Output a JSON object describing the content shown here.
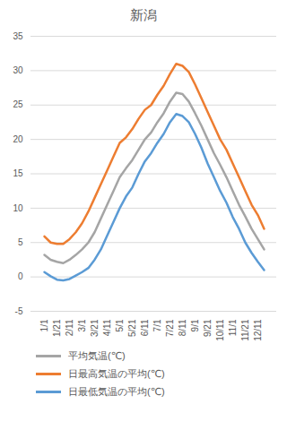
{
  "chart_data": {
    "type": "line",
    "title": "新潟",
    "categories": [
      "1/1",
      null,
      "1/21",
      null,
      "2/11",
      null,
      "3/1",
      null,
      "3/21",
      null,
      "4/11",
      null,
      "5/1",
      null,
      "5/21",
      null,
      "6/11",
      null,
      "7/1",
      null,
      "7/21",
      null,
      "8/11",
      null,
      "9/1",
      null,
      "9/21",
      null,
      "10/11",
      null,
      "11/1",
      null,
      "11/21",
      null,
      "12/11",
      null
    ],
    "series": [
      {
        "name": "平均気温(℃)",
        "color": "#a5a5a5",
        "values": [
          3.2,
          2.5,
          2.2,
          2.0,
          2.5,
          3.2,
          4.0,
          5.0,
          6.5,
          8.5,
          10.5,
          12.5,
          14.5,
          15.8,
          17.0,
          18.5,
          20.0,
          21.0,
          22.5,
          23.8,
          25.5,
          26.8,
          26.6,
          25.5,
          23.8,
          22.0,
          20.0,
          18.0,
          16.3,
          14.5,
          12.5,
          10.5,
          8.8,
          7.0,
          5.5,
          4.0
        ]
      },
      {
        "name": "日最高気温の平均(℃)",
        "color": "#ed7d31",
        "values": [
          5.9,
          5.0,
          4.8,
          4.8,
          5.5,
          6.5,
          7.8,
          9.5,
          11.5,
          13.5,
          15.5,
          17.5,
          19.5,
          20.3,
          21.5,
          23.0,
          24.3,
          25.0,
          26.5,
          27.8,
          29.5,
          31.0,
          30.7,
          29.8,
          28.0,
          26.0,
          24.0,
          22.0,
          20.0,
          18.5,
          16.5,
          14.5,
          12.5,
          10.5,
          9.0,
          7.0
        ]
      },
      {
        "name": "日最低気温の平均(℃)",
        "color": "#5b9bd5",
        "values": [
          0.7,
          0.1,
          -0.4,
          -0.5,
          -0.3,
          0.2,
          0.7,
          1.3,
          2.5,
          4.0,
          6.0,
          8.0,
          10.0,
          11.7,
          13.0,
          15.0,
          16.8,
          18.0,
          19.5,
          20.8,
          22.5,
          23.7,
          23.4,
          22.5,
          20.8,
          18.8,
          16.5,
          14.5,
          12.5,
          10.8,
          8.7,
          7.0,
          5.0,
          3.5,
          2.2,
          1.0
        ]
      }
    ],
    "ylim": [
      -5,
      35
    ],
    "yticks": [
      -5,
      0,
      5,
      10,
      15,
      20,
      25,
      30,
      35
    ],
    "grid": true,
    "legend": "bottom"
  }
}
